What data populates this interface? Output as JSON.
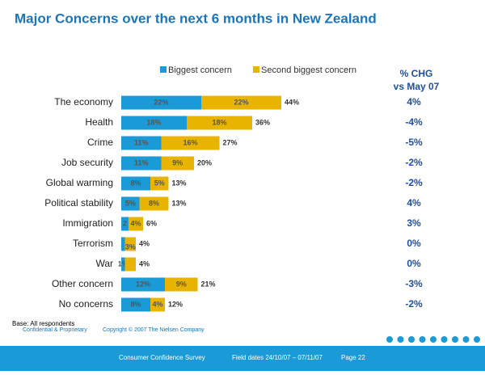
{
  "chart_data": {
    "type": "stacked-bar-horizontal",
    "title": "Major Concerns over the next 6 months in New Zealand",
    "categories": [
      "The economy",
      "Health",
      "Crime",
      "Job security",
      "Global warming",
      "Political stability",
      "Immigration",
      "Terrorism",
      "War",
      "Other concern",
      "No concerns"
    ],
    "series": [
      {
        "name": "Biggest concern",
        "color": "#1a9ad6",
        "values": [
          22,
          18,
          11,
          11,
          8,
          5,
          2,
          1,
          1,
          12,
          8
        ],
        "value_labels": [
          "22%",
          "18%",
          "11%",
          "11%",
          "8%",
          "5%",
          "2",
          null,
          "1%",
          "12%",
          "8%"
        ]
      },
      {
        "name": "Second biggest concern",
        "color": "#e8b400",
        "values": [
          22,
          18,
          16,
          9,
          5,
          8,
          4,
          3,
          3,
          9,
          4
        ],
        "value_labels": [
          "22%",
          "18%",
          "16%",
          "9%",
          "5%",
          "8%",
          "4%",
          "3%",
          null,
          "9%",
          "4%"
        ]
      }
    ],
    "totals": [
      "44%",
      "36%",
      "27%",
      "20%",
      "13%",
      "13%",
      "6%",
      "4%",
      "4%",
      "21%",
      "12%"
    ],
    "change_title": "% CHG vs May 07",
    "changes": [
      "4%",
      "-4%",
      "-5%",
      "-2%",
      "-2%",
      "4%",
      "3%",
      "0%",
      "0%",
      "-3%",
      "-2%"
    ],
    "base_note": "Base: All respondents",
    "confidential": "Confidential & Proprietary",
    "copyright": "Copyright © 2007 The Nielsen Company",
    "footer": [
      "Consumer Confidence Survey",
      "Field dates 24/10/07 – 07/11/07",
      "Page 22"
    ]
  }
}
